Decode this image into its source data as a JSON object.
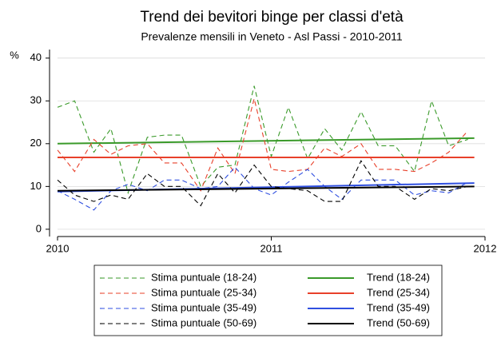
{
  "chart_data": {
    "type": "line",
    "title": "Trend dei bevitori binge per classi d'età",
    "subtitle": "Prevalenze mensili in Veneto - Asl Passi - 2010-2011",
    "y_label": "%",
    "x": [
      2010,
      2010.08,
      2010.17,
      2010.25,
      2010.33,
      2010.42,
      2010.5,
      2010.58,
      2010.67,
      2010.75,
      2010.83,
      2010.92,
      2011,
      2011.08,
      2011.17,
      2011.25,
      2011.33,
      2011.42,
      2011.5,
      2011.58,
      2011.67,
      2011.75,
      2011.83,
      2011.92
    ],
    "series": [
      {
        "name": "Stima puntuale (18-24)",
        "color": "#3a9a2a",
        "style": "dashed",
        "values": [
          28.5,
          30,
          18,
          23.5,
          8.5,
          21.5,
          22,
          22,
          10,
          14.5,
          15,
          33.5,
          17,
          28.5,
          16.5,
          23.5,
          18.5,
          27.5,
          19.5,
          19.5,
          13.5,
          30,
          19.5,
          21
        ]
      },
      {
        "name": "Trend (18-24)",
        "color": "#3a9a2a",
        "style": "solid",
        "x": [
          2010,
          2011.95
        ],
        "values": [
          20,
          21.3
        ]
      },
      {
        "name": "Stima puntuale (25-34)",
        "color": "#e8402a",
        "style": "dashed",
        "values": [
          18.5,
          13.5,
          21,
          17.5,
          19.5,
          20,
          15.5,
          15.5,
          9,
          19,
          13,
          30.5,
          14,
          13.5,
          14,
          19,
          17,
          20,
          14,
          14,
          13.5,
          15.5,
          18,
          23
        ]
      },
      {
        "name": "Trend (25-34)",
        "color": "#e8402a",
        "style": "solid",
        "x": [
          2010,
          2011.95
        ],
        "values": [
          16.8,
          16.8
        ]
      },
      {
        "name": "Stima puntuale (35-49)",
        "color": "#2f4fe0",
        "style": "dashed",
        "values": [
          9,
          7,
          4.5,
          9,
          10.5,
          9,
          11.5,
          11.5,
          9.5,
          10,
          14.5,
          9.5,
          8,
          11,
          14,
          10,
          7,
          11.5,
          11.5,
          11.5,
          8,
          9,
          8.5,
          11
        ]
      },
      {
        "name": "Trend (35-49)",
        "color": "#2f4fe0",
        "style": "solid",
        "x": [
          2010,
          2011.95
        ],
        "values": [
          8.8,
          10.8
        ]
      },
      {
        "name": "Stima puntuale (50-69)",
        "color": "#000000",
        "style": "dashed",
        "values": [
          11.5,
          8,
          6.5,
          8,
          7,
          13,
          10,
          10,
          5.5,
          13,
          8.5,
          15,
          10,
          9.5,
          9,
          6.5,
          6.5,
          16,
          10,
          10,
          7,
          9.5,
          9,
          10
        ]
      },
      {
        "name": "Trend (50-69)",
        "color": "#000000",
        "style": "solid",
        "x": [
          2010,
          2011.95
        ],
        "values": [
          9,
          10
        ]
      }
    ],
    "xlim": [
      2010,
      2012
    ],
    "xticks": [
      2010,
      2011,
      2012
    ],
    "ylim": [
      -1.7,
      42
    ],
    "yticks": [
      0,
      10,
      20,
      30,
      40
    ],
    "grid": true
  }
}
